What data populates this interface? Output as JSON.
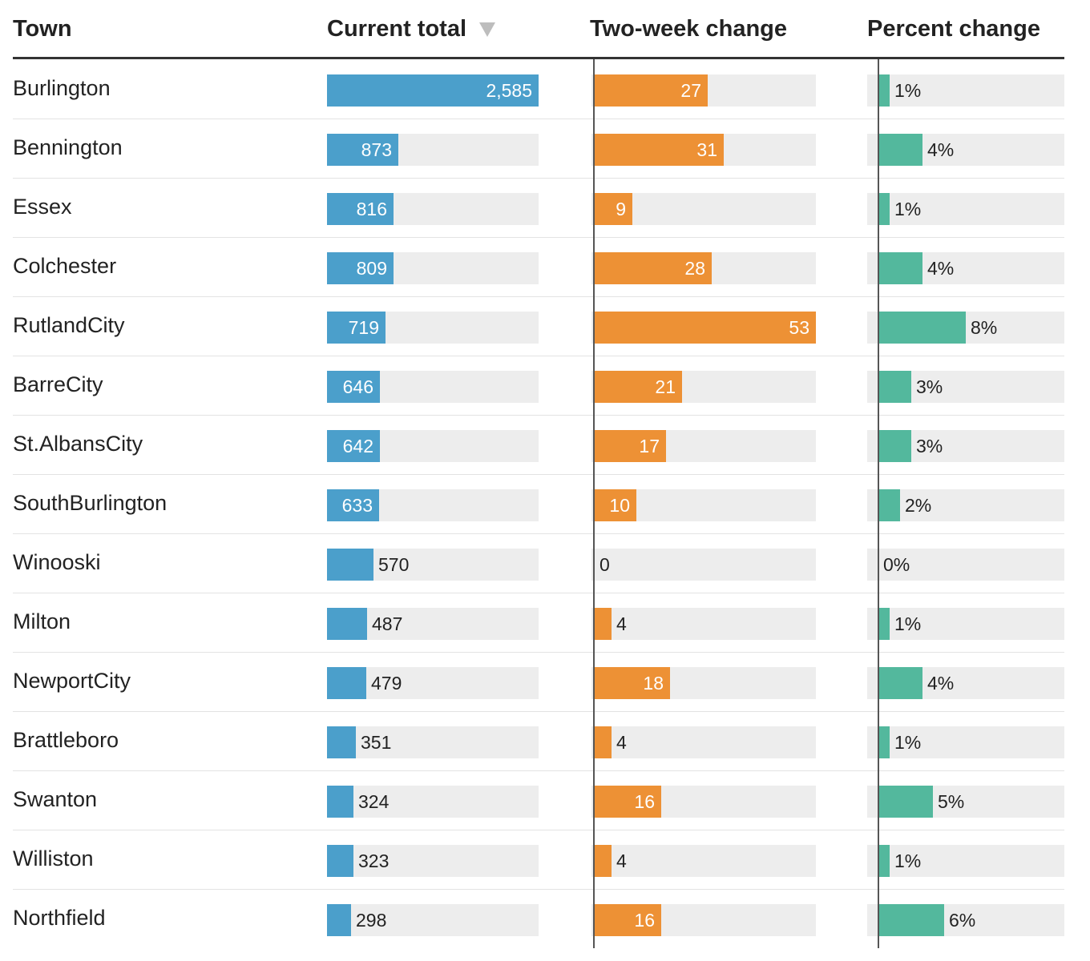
{
  "header": {
    "town": "Town",
    "current_total": "Current total",
    "two_week_change": "Two-week change",
    "percent_change": "Percent change",
    "sort_icon": "sort-descending-triangle"
  },
  "colors": {
    "current_total": "#4b9fcb",
    "two_week_change": "#ed9135",
    "percent_change": "#53b89d",
    "track": "#ededed"
  },
  "chart_data": {
    "type": "table",
    "columns": [
      "Town",
      "Current total",
      "Two-week change",
      "Percent change"
    ],
    "sort": {
      "column": "Current total",
      "order": "descending"
    },
    "scales": {
      "current_total_max": 2585,
      "two_week_change_max": 53,
      "percent_change_max": 17
    },
    "rows": [
      {
        "town": "Burlington",
        "total": 2585,
        "total_label": "2,585",
        "change": 27,
        "change_label": "27",
        "pct": 1,
        "pct_label": "1%"
      },
      {
        "town": "Bennington",
        "total": 873,
        "total_label": "873",
        "change": 31,
        "change_label": "31",
        "pct": 4,
        "pct_label": "4%"
      },
      {
        "town": "Essex",
        "total": 816,
        "total_label": "816",
        "change": 9,
        "change_label": "9",
        "pct": 1,
        "pct_label": "1%"
      },
      {
        "town": "Colchester",
        "total": 809,
        "total_label": "809",
        "change": 28,
        "change_label": "28",
        "pct": 4,
        "pct_label": "4%"
      },
      {
        "town": "RutlandCity",
        "total": 719,
        "total_label": "719",
        "change": 53,
        "change_label": "53",
        "pct": 8,
        "pct_label": "8%"
      },
      {
        "town": "BarreCity",
        "total": 646,
        "total_label": "646",
        "change": 21,
        "change_label": "21",
        "pct": 3,
        "pct_label": "3%"
      },
      {
        "town": "St.AlbansCity",
        "total": 642,
        "total_label": "642",
        "change": 17,
        "change_label": "17",
        "pct": 3,
        "pct_label": "3%"
      },
      {
        "town": "SouthBurlington",
        "total": 633,
        "total_label": "633",
        "change": 10,
        "change_label": "10",
        "pct": 2,
        "pct_label": "2%"
      },
      {
        "town": "Winooski",
        "total": 570,
        "total_label": "570",
        "change": 0,
        "change_label": "0",
        "pct": 0,
        "pct_label": "0%"
      },
      {
        "town": "Milton",
        "total": 487,
        "total_label": "487",
        "change": 4,
        "change_label": "4",
        "pct": 1,
        "pct_label": "1%"
      },
      {
        "town": "NewportCity",
        "total": 479,
        "total_label": "479",
        "change": 18,
        "change_label": "18",
        "pct": 4,
        "pct_label": "4%"
      },
      {
        "town": "Brattleboro",
        "total": 351,
        "total_label": "351",
        "change": 4,
        "change_label": "4",
        "pct": 1,
        "pct_label": "1%"
      },
      {
        "town": "Swanton",
        "total": 324,
        "total_label": "324",
        "change": 16,
        "change_label": "16",
        "pct": 5,
        "pct_label": "5%"
      },
      {
        "town": "Williston",
        "total": 323,
        "total_label": "323",
        "change": 4,
        "change_label": "4",
        "pct": 1,
        "pct_label": "1%"
      },
      {
        "town": "Northfield",
        "total": 298,
        "total_label": "298",
        "change": 16,
        "change_label": "16",
        "pct": 6,
        "pct_label": "6%"
      }
    ]
  }
}
